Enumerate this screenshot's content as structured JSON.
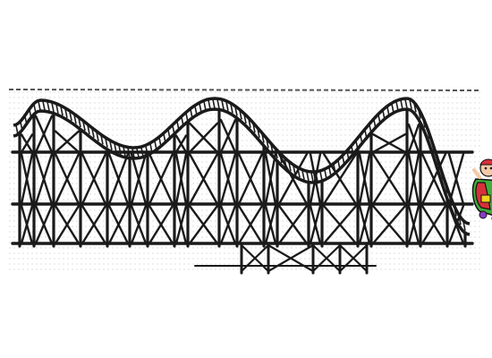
{
  "illustration": {
    "subject": "wooden-roller-coaster-trestle",
    "rider": "cartoon-coaster-car-with-rider"
  },
  "colors": {
    "ink": "#1a1a1a",
    "dots": "#b5b5b5",
    "car_red": "#d8303a",
    "car_green": "#3fae3b",
    "car_yellow": "#f2d21c",
    "car_purple": "#8a3cc2",
    "skin": "#f3c9a6"
  }
}
